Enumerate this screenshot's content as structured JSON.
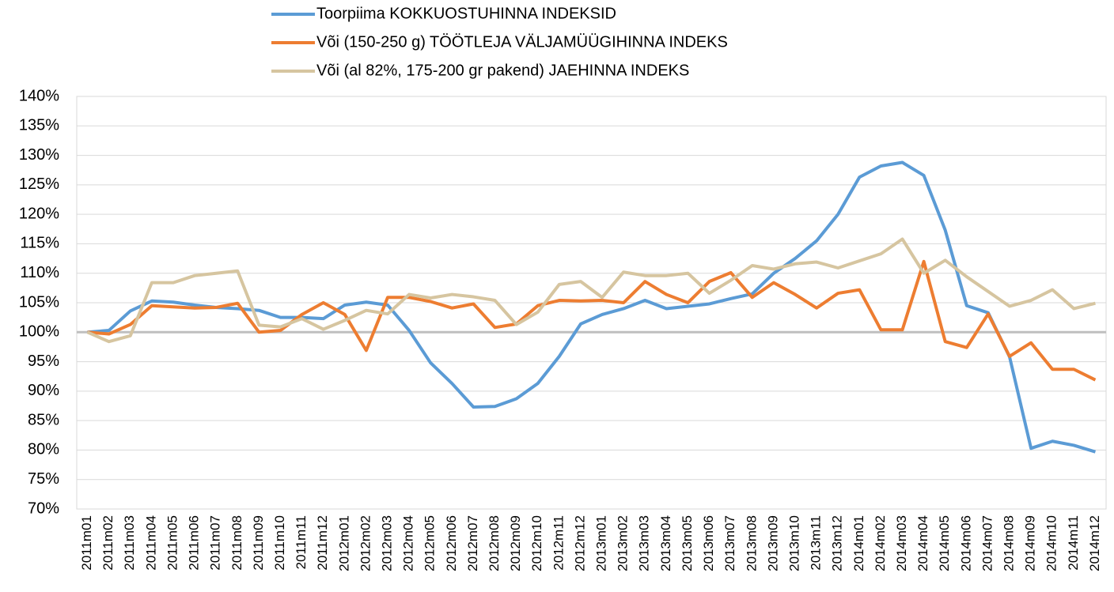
{
  "chart_data": {
    "type": "line",
    "categories": [
      "2011m01",
      "2011m02",
      "2011m03",
      "2011m04",
      "2011m05",
      "2011m06",
      "2011m07",
      "2011m08",
      "2011m09",
      "2011m10",
      "2011m11",
      "2011m12",
      "2012m01",
      "2012m02",
      "2012m03",
      "2012m04",
      "2012m05",
      "2012m06",
      "2012m07",
      "2012m08",
      "2012m09",
      "2012m10",
      "2012m11",
      "2012m12",
      "2013m01",
      "2013m02",
      "2013m03",
      "2013m04",
      "2013m05",
      "2013m06",
      "2013m07",
      "2013m08",
      "2013m09",
      "2013m10",
      "2013m11",
      "2013m12",
      "2014m01",
      "2014m02",
      "2014m03",
      "2014m04",
      "2014m05",
      "2014m06",
      "2014m07",
      "2014m08",
      "2014m09",
      "2014m10",
      "2014m11",
      "2014m12"
    ],
    "series": [
      {
        "name": "Toorpiima KOKKUOSTUHINNA INDEKSID",
        "color": "#5b9bd5",
        "values": [
          100,
          100.3,
          103.6,
          105.3,
          105.1,
          104.6,
          104.2,
          104.0,
          103.7,
          102.5,
          102.5,
          102.3,
          104.6,
          105.1,
          104.6,
          100.3,
          94.8,
          91.3,
          87.3,
          87.4,
          88.7,
          91.3,
          95.9,
          101.4,
          103.0,
          104.0,
          105.4,
          104.0,
          104.4,
          104.8,
          105.7,
          106.5,
          110.0,
          112.5,
          115.5,
          120.0,
          126.3,
          128.2,
          128.8,
          126.6,
          117.3,
          104.5,
          103.3,
          95.8,
          80.3,
          81.5,
          80.8,
          79.7
        ]
      },
      {
        "name": "Või (150-250 g) TÖÖTLEJA VÄLJAMÜÜGIHINNA INDEKS",
        "color": "#ed7d31",
        "values": [
          100,
          99.7,
          101.3,
          104.5,
          104.3,
          104.1,
          104.2,
          104.9,
          100.0,
          100.3,
          103.0,
          105.0,
          103.0,
          96.9,
          105.9,
          105.9,
          105.2,
          104.1,
          104.8,
          100.8,
          101.4,
          104.5,
          105.4,
          105.3,
          105.4,
          105.0,
          108.6,
          106.4,
          105.0,
          108.6,
          110.1,
          105.9,
          108.4,
          106.4,
          104.1,
          106.6,
          107.2,
          100.4,
          100.4,
          112.0,
          98.4,
          97.4,
          103.1,
          95.9,
          98.2,
          93.7,
          93.7,
          91.9
        ]
      },
      {
        "name": "Või (al 82%, 175-200 gr pakend) JAEHINNA INDEKS",
        "color": "#d6c5a0",
        "values": [
          100,
          98.4,
          99.4,
          108.4,
          108.4,
          109.6,
          110.0,
          110.4,
          101.2,
          100.9,
          102.3,
          100.5,
          102.0,
          103.7,
          103.1,
          106.4,
          105.8,
          106.4,
          106.0,
          105.4,
          101.3,
          103.4,
          108.1,
          108.6,
          105.9,
          110.2,
          109.6,
          109.6,
          110.0,
          106.6,
          108.8,
          111.3,
          110.7,
          111.6,
          111.9,
          110.9,
          112.1,
          113.3,
          115.8,
          110.0,
          112.2,
          109.4,
          106.9,
          104.4,
          105.4,
          107.2,
          104.0,
          104.9
        ]
      }
    ],
    "ylim": [
      70,
      140
    ],
    "yticks": [
      {
        "value": 70,
        "label": "70%"
      },
      {
        "value": 75,
        "label": "75%"
      },
      {
        "value": 80,
        "label": "80%"
      },
      {
        "value": 85,
        "label": "85%"
      },
      {
        "value": 90,
        "label": "90%"
      },
      {
        "value": 95,
        "label": "95%"
      },
      {
        "value": 100,
        "label": "100%"
      },
      {
        "value": 105,
        "label": "105%"
      },
      {
        "value": 110,
        "label": "110%"
      },
      {
        "value": 115,
        "label": "115%"
      },
      {
        "value": 120,
        "label": "120%"
      },
      {
        "value": 125,
        "label": "125%"
      },
      {
        "value": 130,
        "label": "130%"
      },
      {
        "value": 135,
        "label": "135%"
      },
      {
        "value": 140,
        "label": "140%"
      }
    ],
    "grid": true,
    "x_axis_crossing": 100,
    "legend": "top"
  }
}
